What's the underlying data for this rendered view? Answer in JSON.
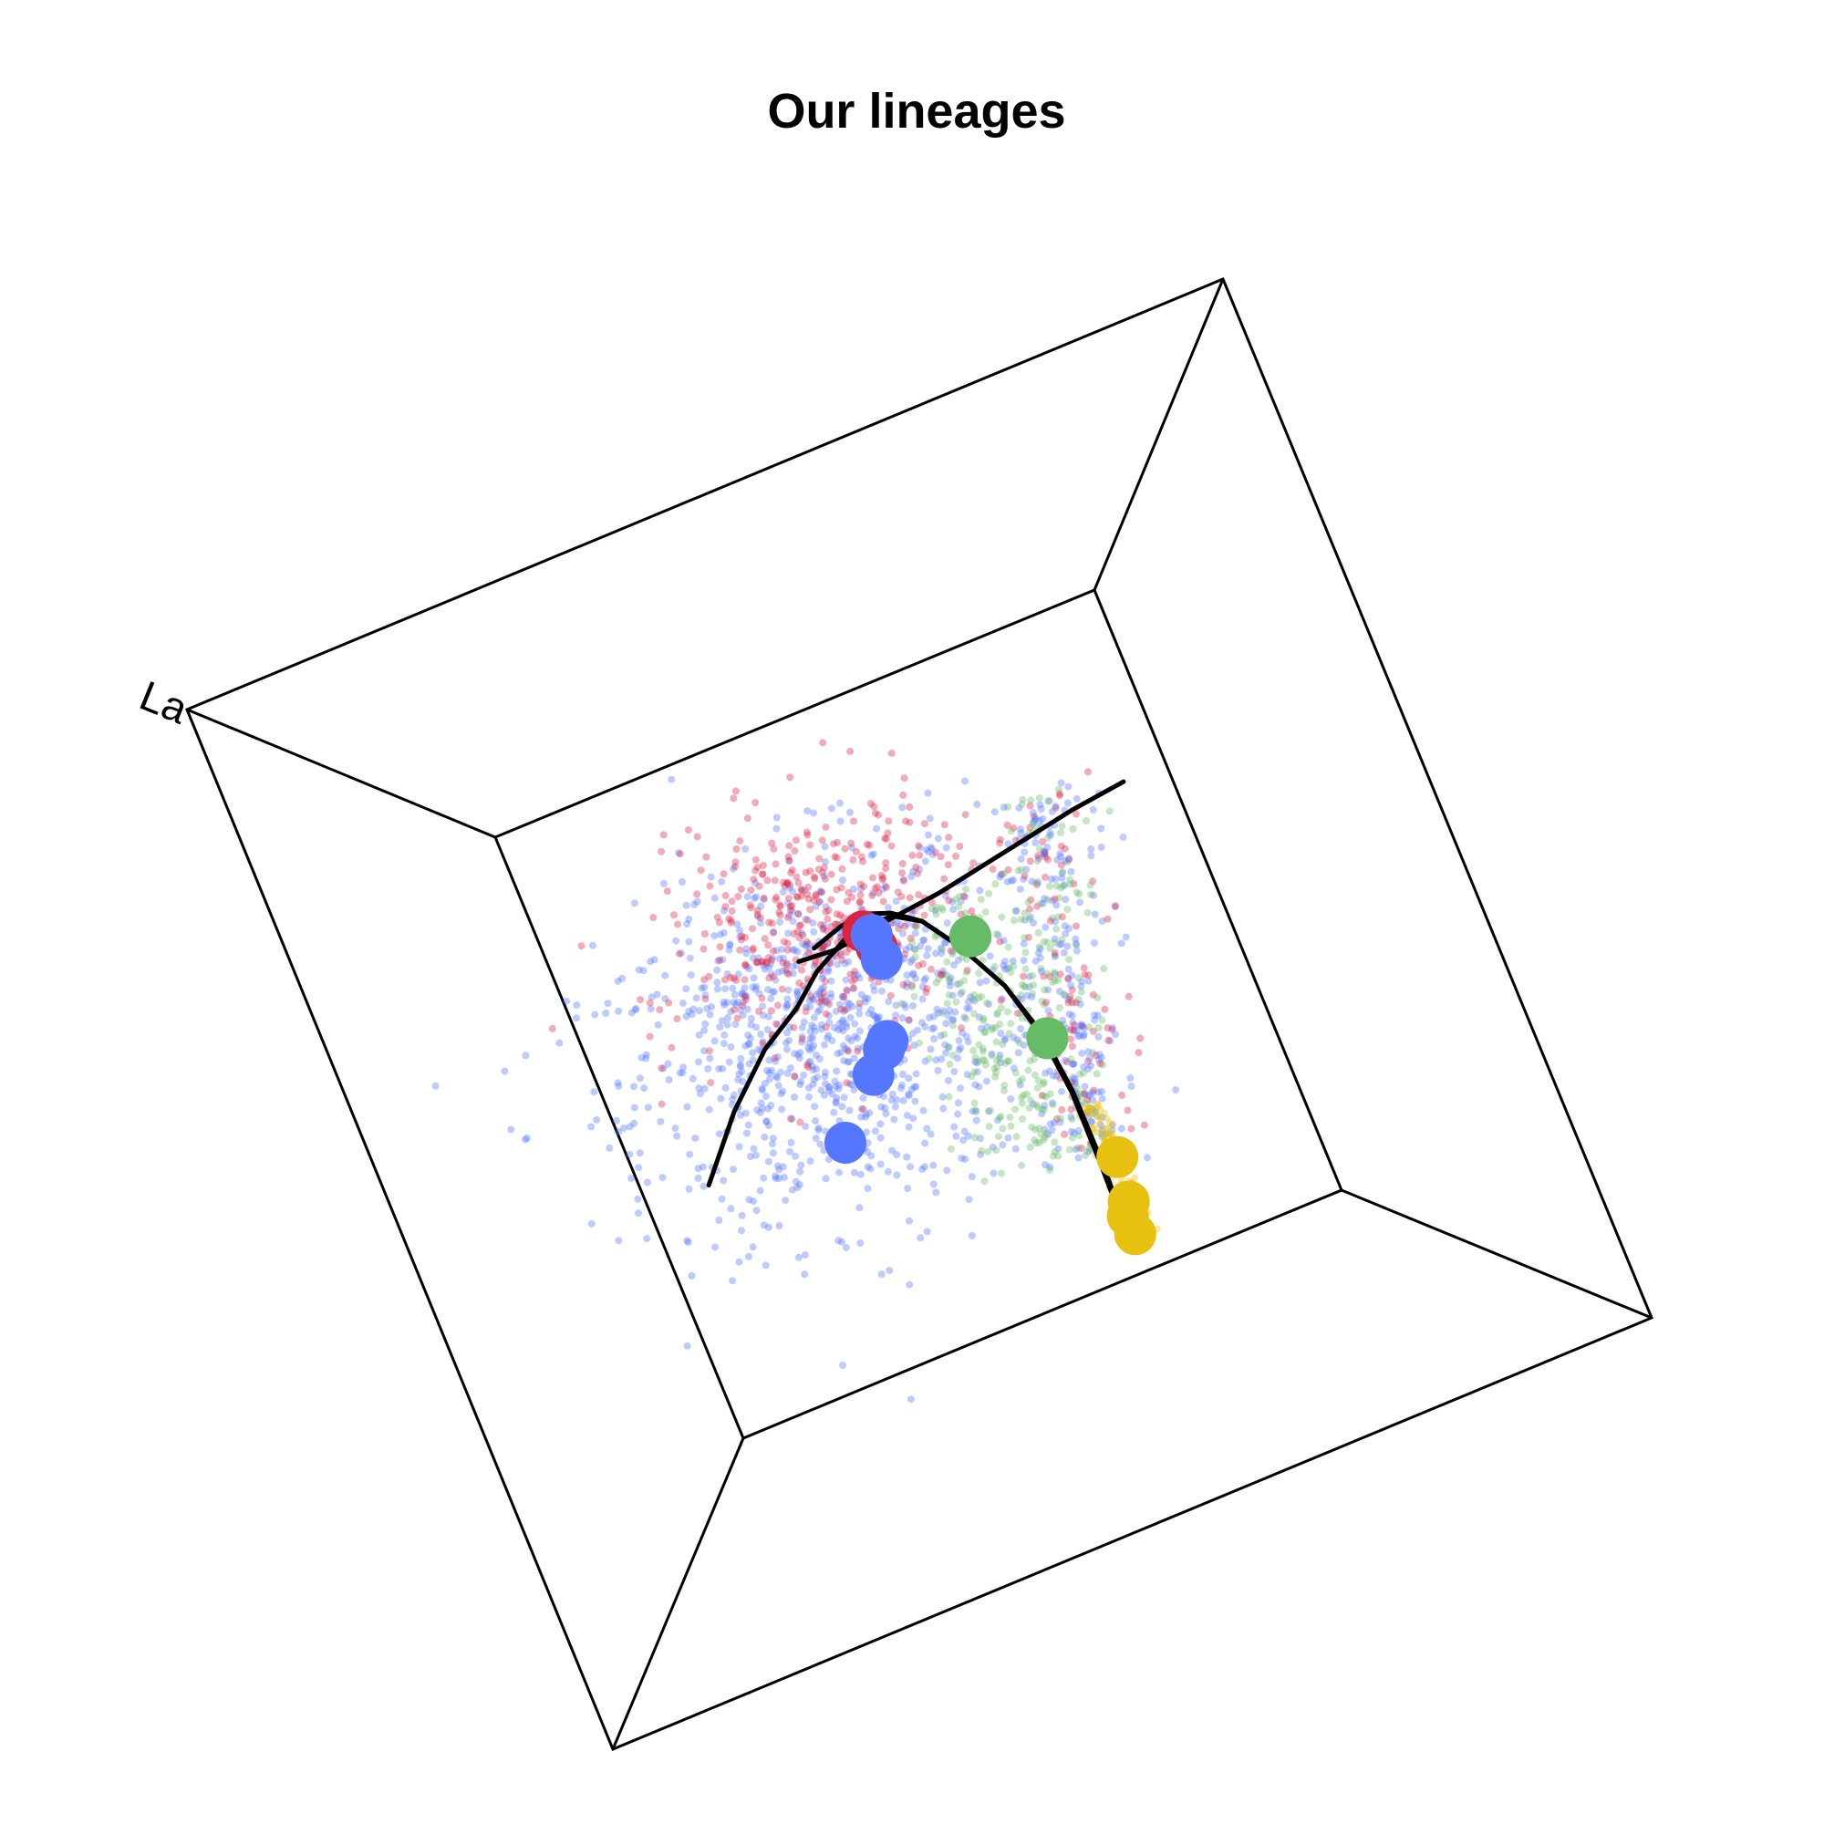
{
  "chart_data": {
    "type": "scatter",
    "title": "Our lineages",
    "corner_label": "La",
    "colors": {
      "blue": "#5577ff",
      "red": "#dd2244",
      "green": "#66bb66",
      "yellow": "#e8c010",
      "line": "#000000",
      "box": "#000000"
    },
    "cluster_centers": [
      {
        "group": "red",
        "x": 0.47,
        "y": 0.65
      },
      {
        "group": "red",
        "x": 0.48,
        "y": 0.62
      },
      {
        "group": "blue",
        "x": 0.48,
        "y": 0.64
      },
      {
        "group": "blue",
        "x": 0.48,
        "y": 0.6
      },
      {
        "group": "blue",
        "x": 0.44,
        "y": 0.48
      },
      {
        "group": "blue",
        "x": 0.43,
        "y": 0.47
      },
      {
        "group": "blue",
        "x": 0.4,
        "y": 0.44
      },
      {
        "group": "blue",
        "x": 0.32,
        "y": 0.36
      },
      {
        "group": "green",
        "x": 0.62,
        "y": 0.58
      },
      {
        "group": "green",
        "x": 0.67,
        "y": 0.39
      },
      {
        "group": "yellow",
        "x": 0.7,
        "y": 0.18
      },
      {
        "group": "yellow",
        "x": 0.69,
        "y": 0.11
      },
      {
        "group": "yellow",
        "x": 0.68,
        "y": 0.09
      },
      {
        "group": "yellow",
        "x": 0.68,
        "y": 0.06
      }
    ],
    "lineages": [
      [
        [
          0.1,
          0.38
        ],
        [
          0.18,
          0.47
        ],
        [
          0.26,
          0.54
        ],
        [
          0.33,
          0.58
        ],
        [
          0.38,
          0.62
        ],
        [
          0.45,
          0.655
        ],
        [
          0.52,
          0.655
        ],
        [
          0.56,
          0.63
        ],
        [
          0.6,
          0.57
        ],
        [
          0.64,
          0.49
        ],
        [
          0.665,
          0.4
        ],
        [
          0.675,
          0.3
        ],
        [
          0.675,
          0.18
        ],
        [
          0.67,
          0.05
        ]
      ],
      [
        [
          0.39,
          0.655
        ],
        [
          0.44,
          0.67
        ],
        [
          0.48,
          0.675
        ],
        [
          0.52,
          0.66
        ],
        [
          0.56,
          0.63
        ],
        [
          0.6,
          0.57
        ],
        [
          0.64,
          0.49
        ],
        [
          0.663,
          0.4
        ],
        [
          0.673,
          0.3
        ],
        [
          0.672,
          0.18
        ],
        [
          0.668,
          0.05
        ]
      ],
      [
        [
          0.36,
          0.645
        ],
        [
          0.42,
          0.64
        ],
        [
          0.5,
          0.65
        ],
        [
          0.6,
          0.66
        ],
        [
          0.72,
          0.68
        ],
        [
          0.84,
          0.7
        ],
        [
          0.93,
          0.71
        ]
      ]
    ]
  }
}
